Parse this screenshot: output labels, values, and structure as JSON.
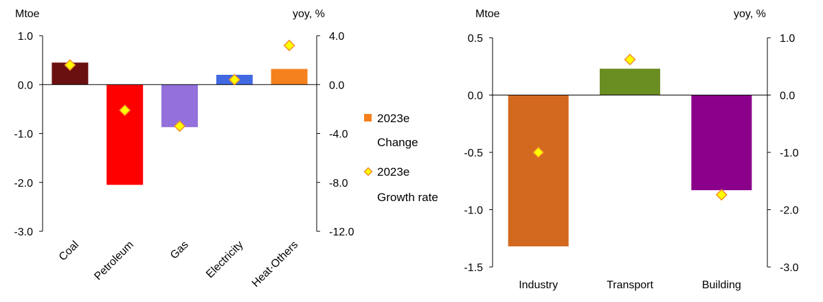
{
  "chart_data": [
    {
      "type": "bar",
      "categories": [
        "Coal",
        "Petroleum",
        "Gas",
        "Electricity",
        "Heat·Others"
      ],
      "series": [
        {
          "name": "2023e Change",
          "axis": "left",
          "values": [
            0.45,
            -2.05,
            -0.87,
            0.2,
            0.32
          ]
        },
        {
          "name": "2023e Growth rate",
          "axis": "right",
          "marker": "diamond",
          "values": [
            1.6,
            -2.1,
            -3.4,
            0.4,
            3.2
          ]
        }
      ],
      "ylabel_left": "Mtoe",
      "ylabel_right": "yoy, %",
      "ylim_left": [
        -3.0,
        1.0
      ],
      "ylim_right": [
        -12.0,
        4.0
      ],
      "yticks_left": [
        "1.0",
        "0.0",
        "-1.0",
        "-2.0",
        "-3.0"
      ],
      "yticks_right": [
        "4.0",
        "0.0",
        "-4.0",
        "-8.0",
        "-12.0"
      ],
      "bar_colors": [
        "#6b1010",
        "#ff0000",
        "#9370db",
        "#4169e1",
        "#f5801e"
      ],
      "legend": [
        {
          "line1": "2023e",
          "line2": "Change",
          "swatch": "#f5801e"
        },
        {
          "line1": "2023e",
          "line2": "Growth rate",
          "swatch": "#ffff00"
        }
      ],
      "legend_position": "right",
      "grid": false
    },
    {
      "type": "bar",
      "categories": [
        "Industry",
        "Transport",
        "Building"
      ],
      "series": [
        {
          "name": "2023e Change",
          "axis": "left",
          "values": [
            -1.32,
            0.23,
            -0.83
          ]
        },
        {
          "name": "2023e Growth rate",
          "axis": "right",
          "marker": "diamond",
          "values": [
            -1.0,
            0.62,
            -1.74
          ]
        }
      ],
      "ylabel_left": "Mtoe",
      "ylabel_right": "yoy, %",
      "ylim_left": [
        -1.5,
        0.5
      ],
      "ylim_right": [
        -3.0,
        1.0
      ],
      "yticks_left": [
        "0.5",
        "0.0",
        "-0.5",
        "-1.0",
        "-1.5"
      ],
      "yticks_right": [
        "1.0",
        "0.0",
        "-1.0",
        "-2.0",
        "-3.0"
      ],
      "bar_colors": [
        "#d2691e",
        "#6b8e23",
        "#8b008b"
      ],
      "grid": false
    }
  ],
  "colors": {
    "marker_fill": "#ffff00",
    "marker_stroke": "#f08c28"
  }
}
